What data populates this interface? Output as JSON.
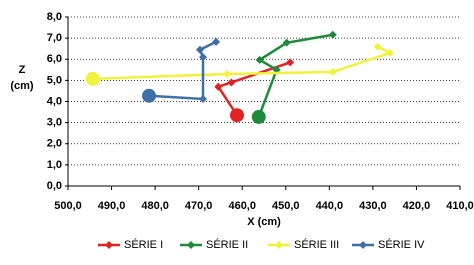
{
  "chart_data": {
    "type": "line",
    "x_label": "X (cm)",
    "y_label_lines": [
      "Z",
      "(cm)"
    ],
    "xlim": [
      500,
      410
    ],
    "xticks": [
      {
        "value": 500,
        "label": "500,0"
      },
      {
        "value": 490,
        "label": "490,0"
      },
      {
        "value": 480,
        "label": "480,0"
      },
      {
        "value": 470,
        "label": "470,0"
      },
      {
        "value": 460,
        "label": "460,0"
      },
      {
        "value": 450,
        "label": "450,0"
      },
      {
        "value": 440,
        "label": "440,0"
      },
      {
        "value": 430,
        "label": "430,0"
      },
      {
        "value": 420,
        "label": "420,0"
      },
      {
        "value": 410,
        "label": "410,0"
      }
    ],
    "ylim": [
      0,
      8
    ],
    "yticks": [
      {
        "value": 0,
        "label": "0,0"
      },
      {
        "value": 1,
        "label": "1,0"
      },
      {
        "value": 2,
        "label": "2,0"
      },
      {
        "value": 3,
        "label": "3,0"
      },
      {
        "value": 4,
        "label": "4,0"
      },
      {
        "value": 5,
        "label": "5,0"
      },
      {
        "value": 6,
        "label": "6,0"
      },
      {
        "value": 7,
        "label": "7,0"
      },
      {
        "value": 8,
        "label": "8,0"
      }
    ],
    "grid": true,
    "legend": "bottom",
    "series": [
      {
        "name": "SÉRIE I",
        "color": "#e02424",
        "x": [
          461.2,
          465.5,
          462.5,
          449.0
        ],
        "values": [
          3.35,
          4.7,
          4.9,
          5.85
        ]
      },
      {
        "name": "SÉRIE II",
        "color": "#1f8a3c",
        "x": [
          456.2,
          452.1,
          456.0,
          449.8,
          439.2
        ],
        "values": [
          3.27,
          5.5,
          5.97,
          6.78,
          7.16
        ]
      },
      {
        "name": "SÉRIE III",
        "color": "#f2f23a",
        "x": [
          494.3,
          463.5,
          439.2,
          426.1,
          428.9
        ],
        "values": [
          5.07,
          5.3,
          5.4,
          6.3,
          6.6
        ]
      },
      {
        "name": "SÉRIE IV",
        "color": "#3f6fa8",
        "x": [
          481.4,
          469.0,
          469.0,
          469.7,
          466.0
        ],
        "values": [
          4.27,
          4.12,
          6.1,
          6.45,
          6.82
        ]
      }
    ]
  }
}
